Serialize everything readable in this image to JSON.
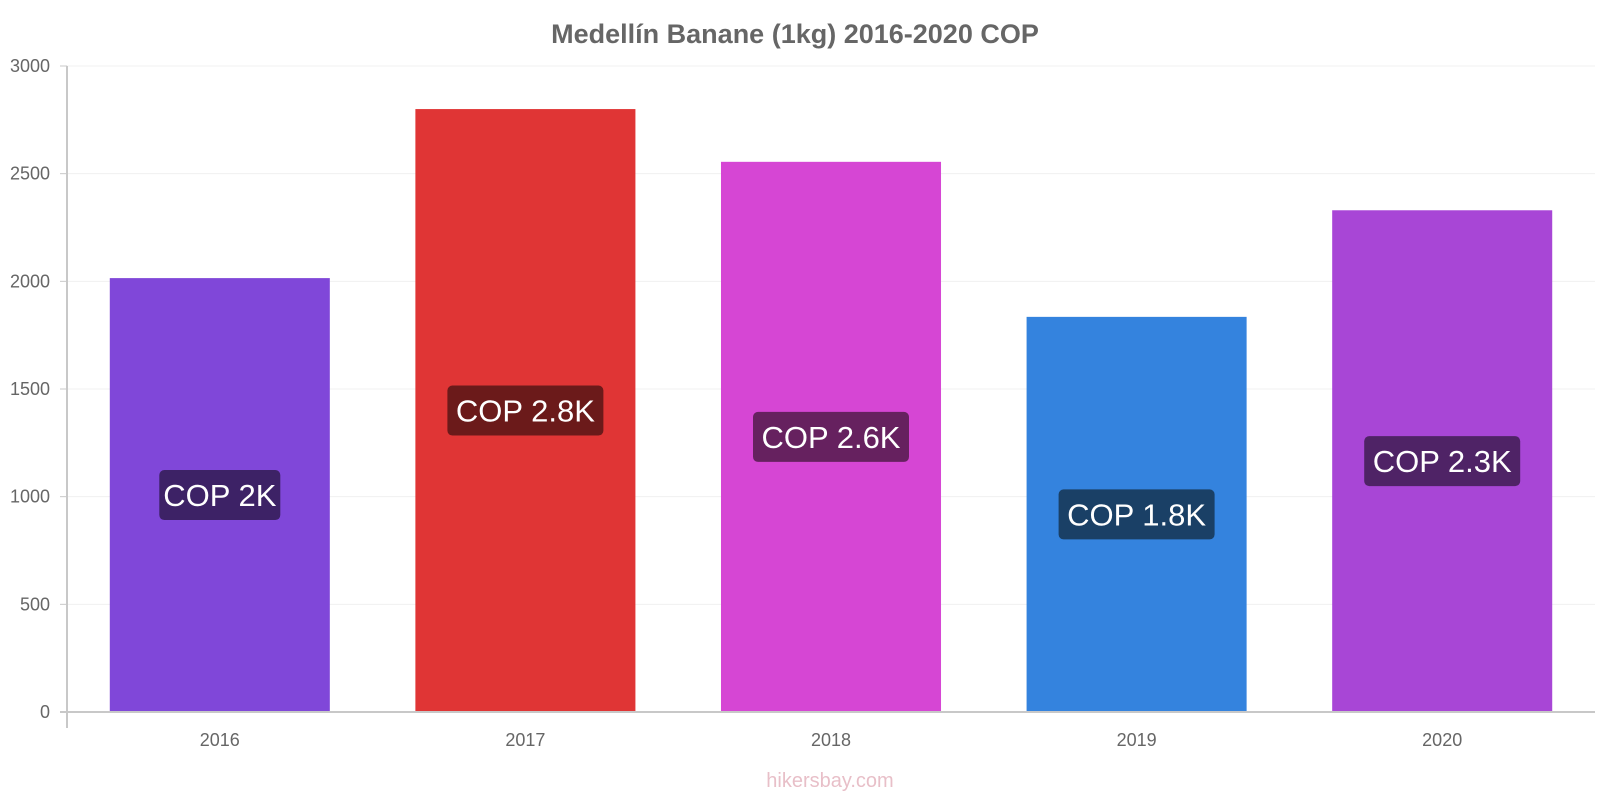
{
  "chart_data": {
    "type": "bar",
    "title": "Medellín Banane (1kg) 2016-2020 COP",
    "xlabel": "",
    "ylabel": "",
    "categories": [
      "2016",
      "2017",
      "2018",
      "2019",
      "2020"
    ],
    "values": [
      2015,
      2800,
      2555,
      1835,
      2330
    ],
    "data_labels": [
      "COP 2K",
      "COP 2.8K",
      "COP 2.6K",
      "COP 1.8K",
      "COP 2.3K"
    ],
    "bar_colors": [
      "#8047d9",
      "#e03535",
      "#d646d4",
      "#3483de",
      "#a846d6"
    ],
    "label_colors": [
      "#3d2266",
      "#6b1a1a",
      "#66215f",
      "#1a4066",
      "#4f2366"
    ],
    "ylim": [
      0,
      3000
    ],
    "yticks": [
      0,
      500,
      1000,
      1500,
      2000,
      2500,
      3000
    ],
    "grid": true,
    "legend": "none"
  },
  "watermark": "hikersbay.com"
}
